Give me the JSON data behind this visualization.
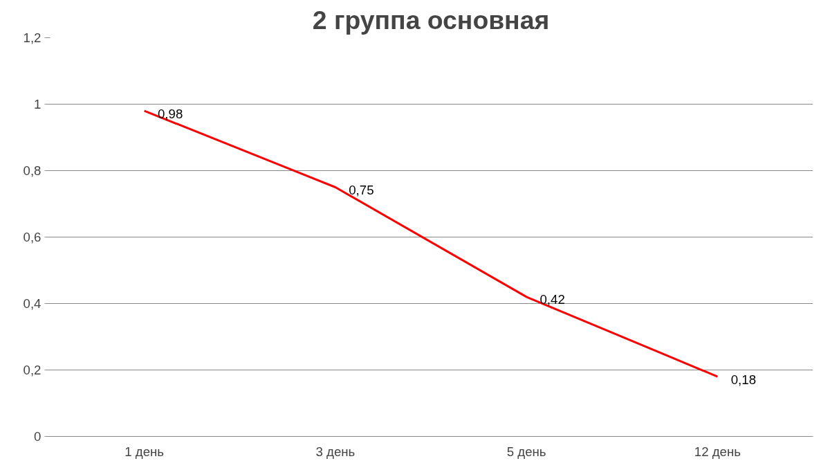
{
  "chart_data": {
    "type": "line",
    "title": "2 группа основная",
    "categories": [
      "1 день",
      "3 день",
      "5 день",
      "12 день"
    ],
    "series": [
      {
        "color": "#ff0000",
        "values": [
          0.98,
          0.75,
          0.42,
          0.18
        ],
        "value_labels": [
          "0,98",
          "0,75",
          "0,42",
          "0,18"
        ]
      }
    ],
    "ylim": [
      0,
      1.2
    ],
    "yticks": [
      0,
      {
        "value": 0.2,
        "label": "0,2"
      },
      {
        "value": 0.4,
        "label": "0,4"
      },
      {
        "value": 0.6,
        "label": "0,6"
      },
      {
        "value": 0.8,
        "label": "0,8"
      },
      1,
      {
        "value": 1.2,
        "label": "1,2"
      }
    ],
    "grid": "y",
    "marker": "none",
    "line_style": "solid"
  }
}
